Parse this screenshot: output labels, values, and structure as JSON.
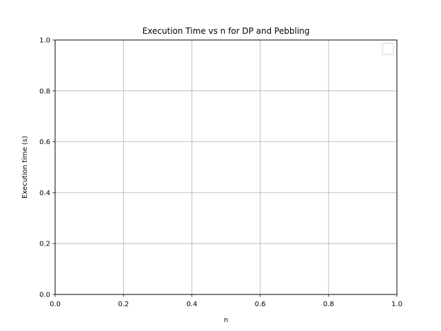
{
  "chart_data": {
    "type": "line",
    "title": "Execution Time vs n for DP and Pebbling",
    "xlabel": "n",
    "ylabel": "Execution time (s)",
    "xlim": [
      0.0,
      1.0
    ],
    "ylim": [
      0.0,
      1.0
    ],
    "xticks": [
      "0.0",
      "0.2",
      "0.4",
      "0.6",
      "0.8",
      "1.0"
    ],
    "yticks": [
      "0.0",
      "0.2",
      "0.4",
      "0.6",
      "0.8",
      "1.0"
    ],
    "grid": true,
    "legend": "top-right",
    "series": []
  }
}
